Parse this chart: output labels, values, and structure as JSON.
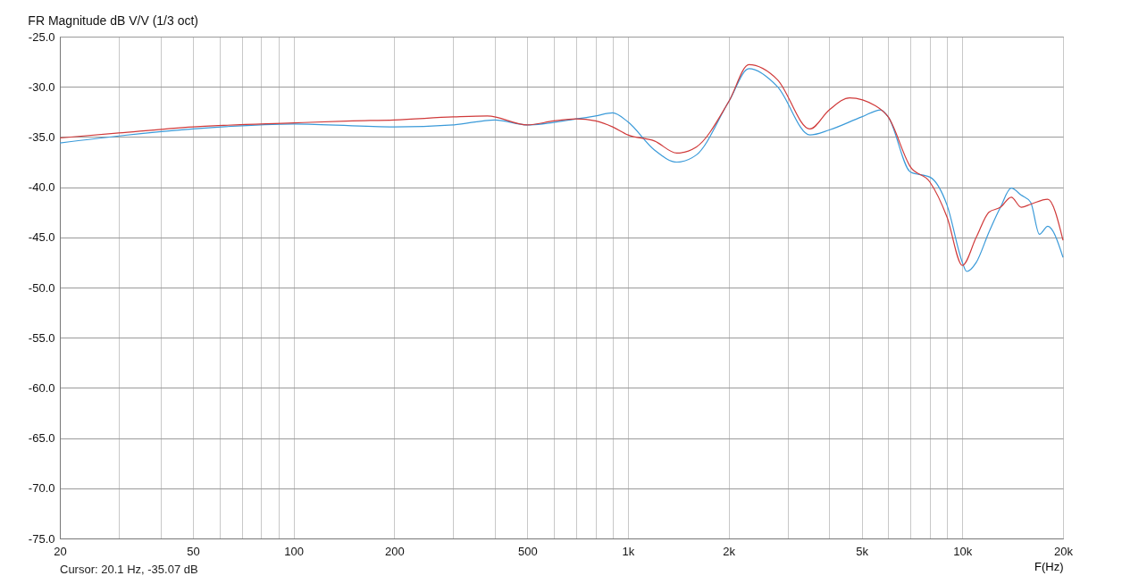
{
  "chart_data": {
    "type": "line",
    "title": "FR Magnitude dB V/V (1/3 oct)",
    "xlabel": "F(Hz)",
    "annotations": [
      "Cursor: 20.1 Hz, -35.07 dB"
    ],
    "log": "x",
    "grid": true,
    "legend": false,
    "marker": "none",
    "line_style": "solid",
    "xlim": [
      20,
      20000
    ],
    "ylim": [
      -75,
      -25
    ],
    "xticks": [
      20,
      {
        "value": 30,
        "label": null
      },
      {
        "value": 40,
        "label": null
      },
      50,
      {
        "value": 60,
        "label": null
      },
      {
        "value": 70,
        "label": null
      },
      {
        "value": 80,
        "label": null
      },
      {
        "value": 90,
        "label": null
      },
      100,
      200,
      {
        "value": 300,
        "label": null
      },
      {
        "value": 400,
        "label": null
      },
      500,
      {
        "value": 600,
        "label": null
      },
      {
        "value": 700,
        "label": null
      },
      {
        "value": 800,
        "label": null
      },
      {
        "value": 900,
        "label": null
      },
      {
        "value": 1000,
        "label": "1k"
      },
      {
        "value": 2000,
        "label": "2k"
      },
      {
        "value": 3000,
        "label": null
      },
      {
        "value": 4000,
        "label": null
      },
      {
        "value": 5000,
        "label": "5k"
      },
      {
        "value": 6000,
        "label": null
      },
      {
        "value": 7000,
        "label": null
      },
      {
        "value": 8000,
        "label": null
      },
      {
        "value": 9000,
        "label": null
      },
      {
        "value": 10000,
        "label": "10k"
      },
      {
        "value": 20000,
        "label": "20k"
      }
    ],
    "yticks": [
      {
        "value": -25,
        "label": "-25.0"
      },
      {
        "value": -30,
        "label": "-30.0"
      },
      {
        "value": -35,
        "label": "-35.0"
      },
      {
        "value": -40,
        "label": "-40.0"
      },
      {
        "value": -45,
        "label": "-45.0"
      },
      {
        "value": -50,
        "label": "-50.0"
      },
      {
        "value": -55,
        "label": "-55.0"
      },
      {
        "value": -60,
        "label": "-60.0"
      },
      {
        "value": -65,
        "label": "-65.0"
      },
      {
        "value": -70,
        "label": "-70.0"
      },
      {
        "value": -75,
        "label": "-75.0"
      }
    ],
    "series": [
      {
        "color": "#3a9ad9",
        "x": [
          20,
          30,
          50,
          100,
          200,
          300,
          400,
          500,
          700,
          800,
          900,
          1000,
          1200,
          1400,
          1600,
          2000,
          2300,
          2800,
          3500,
          4000,
          5000,
          5700,
          6000,
          7000,
          8000,
          9000,
          10000,
          10300,
          11000,
          12000,
          13000,
          14000,
          15000,
          16000,
          17000,
          18000,
          20000
        ],
        "values": [
          -35.6,
          -34.9,
          -34.2,
          -33.7,
          -34.0,
          -33.8,
          -33.3,
          -33.8,
          -33.2,
          -32.9,
          -32.6,
          -33.5,
          -36.3,
          -37.5,
          -36.8,
          -31.5,
          -28.2,
          -30.0,
          -34.8,
          -34.3,
          -33.0,
          -32.3,
          -33.0,
          -38.5,
          -39.0,
          -41.8,
          -47.5,
          -48.4,
          -47.5,
          -44.5,
          -42.0,
          -40.1,
          -40.8,
          -41.5,
          -44.7,
          -43.9,
          -47.0
        ]
      },
      {
        "color": "#d03a3a",
        "x": [
          20,
          30,
          50,
          100,
          150,
          200,
          300,
          380,
          500,
          600,
          700,
          800,
          900,
          1000,
          1200,
          1400,
          1600,
          2000,
          2300,
          2800,
          3500,
          4000,
          4600,
          5500,
          6000,
          7000,
          8000,
          9000,
          10000,
          11000,
          12000,
          13000,
          14000,
          15000,
          16000,
          18000,
          20000
        ],
        "values": [
          -35.1,
          -34.6,
          -34.0,
          -33.6,
          -33.4,
          -33.3,
          -33.0,
          -32.9,
          -33.8,
          -33.4,
          -33.2,
          -33.4,
          -34.0,
          -34.8,
          -35.4,
          -36.6,
          -36.0,
          -31.5,
          -27.8,
          -29.3,
          -34.2,
          -32.3,
          -31.1,
          -31.9,
          -33.0,
          -38.0,
          -39.5,
          -43.0,
          -47.8,
          -45.0,
          -42.5,
          -42.0,
          -41.0,
          -42.0,
          -41.7,
          -41.2,
          -45.3
        ]
      }
    ]
  }
}
